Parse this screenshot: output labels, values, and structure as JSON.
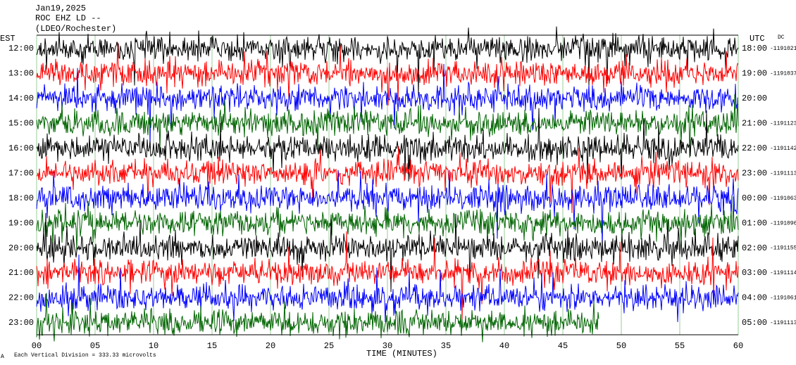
{
  "header": {
    "date": "Jan19,2025",
    "station": "ROC EHZ LD --",
    "network": "(LDEO/Rochester)"
  },
  "left_axis": {
    "title": "EST",
    "labels": [
      "12:00",
      "13:00",
      "14:00",
      "15:00",
      "16:00",
      "17:00",
      "18:00",
      "19:00",
      "20:00",
      "21:00",
      "22:00",
      "23:00"
    ]
  },
  "right_axis": {
    "title": "UTC",
    "coupling": "DC",
    "labels": [
      "18:00",
      "19:00",
      "20:00",
      "21:00",
      "22:00",
      "23:00",
      "00:00",
      "01:00",
      "02:00",
      "03:00",
      "04:00",
      "05:00"
    ],
    "offsets": [
      "-1191021",
      "-1191037",
      null,
      "-1191123",
      "-1191142",
      "-1191113",
      "-1191063",
      "-1191096",
      "-1191155",
      "-1191114",
      "-1191061",
      "-1191113"
    ]
  },
  "x_axis": {
    "title": "TIME (MINUTES)",
    "labels": [
      "00",
      "05",
      "10",
      "15",
      "20",
      "25",
      "30",
      "35",
      "40",
      "45",
      "50",
      "55",
      "60"
    ]
  },
  "footer": {
    "icon": "A",
    "scale_note": "Each Vertical Division = 333.33 microvolts"
  },
  "trace_colors": [
    "#000000",
    "#ff0000",
    "#0000ff",
    "#006400"
  ]
}
